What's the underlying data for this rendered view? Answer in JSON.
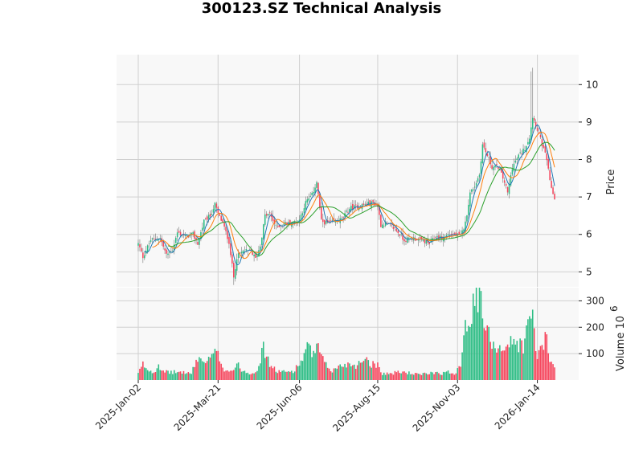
{
  "chart_data": {
    "type": "candlestick",
    "title": "300123.SZ Technical Analysis",
    "price_panel": {
      "ylabel": "Price",
      "ylim": [
        4.6,
        10.8
      ],
      "yticks": [
        "5",
        "6",
        "7",
        "8",
        "9",
        "10"
      ],
      "grid": true
    },
    "volume_panel": {
      "ylabel": "Volume",
      "ylabel_exponent": "10",
      "ylabel_exponent_power": "6",
      "ylim": [
        0,
        350
      ],
      "yticks": [
        "100",
        "200",
        "300"
      ],
      "grid": true
    },
    "x_tick_labels": [
      "2025-Jan-02",
      "2025-Mar-21",
      "2025-Jun-06",
      "2025-Aug-15",
      "2025-Nov-03",
      "2026-Jan-14"
    ],
    "x_tick_bar_index": [
      0,
      51,
      103,
      153,
      204,
      255
    ],
    "colors": {
      "up": "#2ebd85",
      "down": "#f6465d",
      "ma_short": "#1f77b4",
      "ma_mid": "#ff7f0e",
      "ma_long": "#2ca02c",
      "panel_bg": "#f8f8f8",
      "grid": "#d0d0d0"
    },
    "close_keypoints": [
      [
        0,
        5.75
      ],
      [
        3,
        5.4
      ],
      [
        8,
        5.85
      ],
      [
        14,
        5.9
      ],
      [
        18,
        5.45
      ],
      [
        22,
        5.6
      ],
      [
        25,
        6.05
      ],
      [
        30,
        5.95
      ],
      [
        35,
        6.0
      ],
      [
        38,
        5.75
      ],
      [
        42,
        6.35
      ],
      [
        46,
        6.5
      ],
      [
        49,
        6.8
      ],
      [
        51,
        6.55
      ],
      [
        54,
        6.3
      ],
      [
        58,
        5.8
      ],
      [
        61,
        4.85
      ],
      [
        63,
        5.4
      ],
      [
        67,
        5.55
      ],
      [
        72,
        5.55
      ],
      [
        75,
        5.35
      ],
      [
        78,
        5.7
      ],
      [
        81,
        6.5
      ],
      [
        84,
        6.55
      ],
      [
        88,
        6.2
      ],
      [
        94,
        6.3
      ],
      [
        99,
        6.3
      ],
      [
        103,
        6.4
      ],
      [
        107,
        6.85
      ],
      [
        111,
        7.05
      ],
      [
        114,
        7.4
      ],
      [
        117,
        6.35
      ],
      [
        121,
        6.3
      ],
      [
        126,
        6.35
      ],
      [
        130,
        6.4
      ],
      [
        135,
        6.7
      ],
      [
        140,
        6.75
      ],
      [
        145,
        6.8
      ],
      [
        150,
        6.85
      ],
      [
        153,
        6.75
      ],
      [
        155,
        6.25
      ],
      [
        158,
        6.3
      ],
      [
        164,
        6.15
      ],
      [
        170,
        5.85
      ],
      [
        175,
        5.9
      ],
      [
        181,
        5.85
      ],
      [
        186,
        5.75
      ],
      [
        190,
        5.95
      ],
      [
        194,
        5.9
      ],
      [
        198,
        6.0
      ],
      [
        202,
        6.0
      ],
      [
        206,
        5.95
      ],
      [
        209,
        6.3
      ],
      [
        212,
        7.1
      ],
      [
        215,
        7.3
      ],
      [
        218,
        7.6
      ],
      [
        220,
        8.4
      ],
      [
        223,
        8.1
      ],
      [
        226,
        7.8
      ],
      [
        230,
        7.8
      ],
      [
        234,
        7.4
      ],
      [
        236,
        7.1
      ],
      [
        239,
        7.8
      ],
      [
        243,
        8.1
      ],
      [
        247,
        8.3
      ],
      [
        250,
        8.6
      ],
      [
        252,
        9.15
      ],
      [
        255,
        8.8
      ],
      [
        258,
        8.4
      ],
      [
        261,
        8.0
      ],
      [
        263,
        7.4
      ],
      [
        266,
        6.95
      ]
    ],
    "volume_keypoints": [
      [
        0,
        25
      ],
      [
        3,
        60
      ],
      [
        6,
        40
      ],
      [
        10,
        30
      ],
      [
        13,
        60
      ],
      [
        16,
        30
      ],
      [
        22,
        30
      ],
      [
        28,
        30
      ],
      [
        34,
        25
      ],
      [
        38,
        85
      ],
      [
        44,
        65
      ],
      [
        48,
        100
      ],
      [
        51,
        95
      ],
      [
        55,
        40
      ],
      [
        60,
        35
      ],
      [
        63,
        60
      ],
      [
        67,
        35
      ],
      [
        72,
        25
      ],
      [
        76,
        40
      ],
      [
        80,
        120
      ],
      [
        84,
        60
      ],
      [
        88,
        35
      ],
      [
        94,
        30
      ],
      [
        99,
        35
      ],
      [
        103,
        60
      ],
      [
        108,
        120
      ],
      [
        112,
        100
      ],
      [
        115,
        120
      ],
      [
        119,
        60
      ],
      [
        124,
        35
      ],
      [
        128,
        50
      ],
      [
        132,
        60
      ],
      [
        136,
        60
      ],
      [
        140,
        55
      ],
      [
        145,
        90
      ],
      [
        149,
        60
      ],
      [
        153,
        60
      ],
      [
        156,
        25
      ],
      [
        162,
        25
      ],
      [
        166,
        30
      ],
      [
        170,
        30
      ],
      [
        175,
        25
      ],
      [
        180,
        20
      ],
      [
        185,
        25
      ],
      [
        190,
        30
      ],
      [
        194,
        25
      ],
      [
        198,
        30
      ],
      [
        202,
        25
      ],
      [
        206,
        60
      ],
      [
        209,
        240
      ],
      [
        212,
        225
      ],
      [
        215,
        290
      ],
      [
        218,
        330
      ],
      [
        220,
        240
      ],
      [
        223,
        175
      ],
      [
        226,
        150
      ],
      [
        230,
        125
      ],
      [
        234,
        125
      ],
      [
        238,
        140
      ],
      [
        242,
        140
      ],
      [
        246,
        130
      ],
      [
        250,
        225
      ],
      [
        252,
        245
      ],
      [
        255,
        80
      ],
      [
        258,
        130
      ],
      [
        261,
        155
      ],
      [
        263,
        70
      ],
      [
        266,
        50
      ]
    ],
    "bars_total": 267
  }
}
